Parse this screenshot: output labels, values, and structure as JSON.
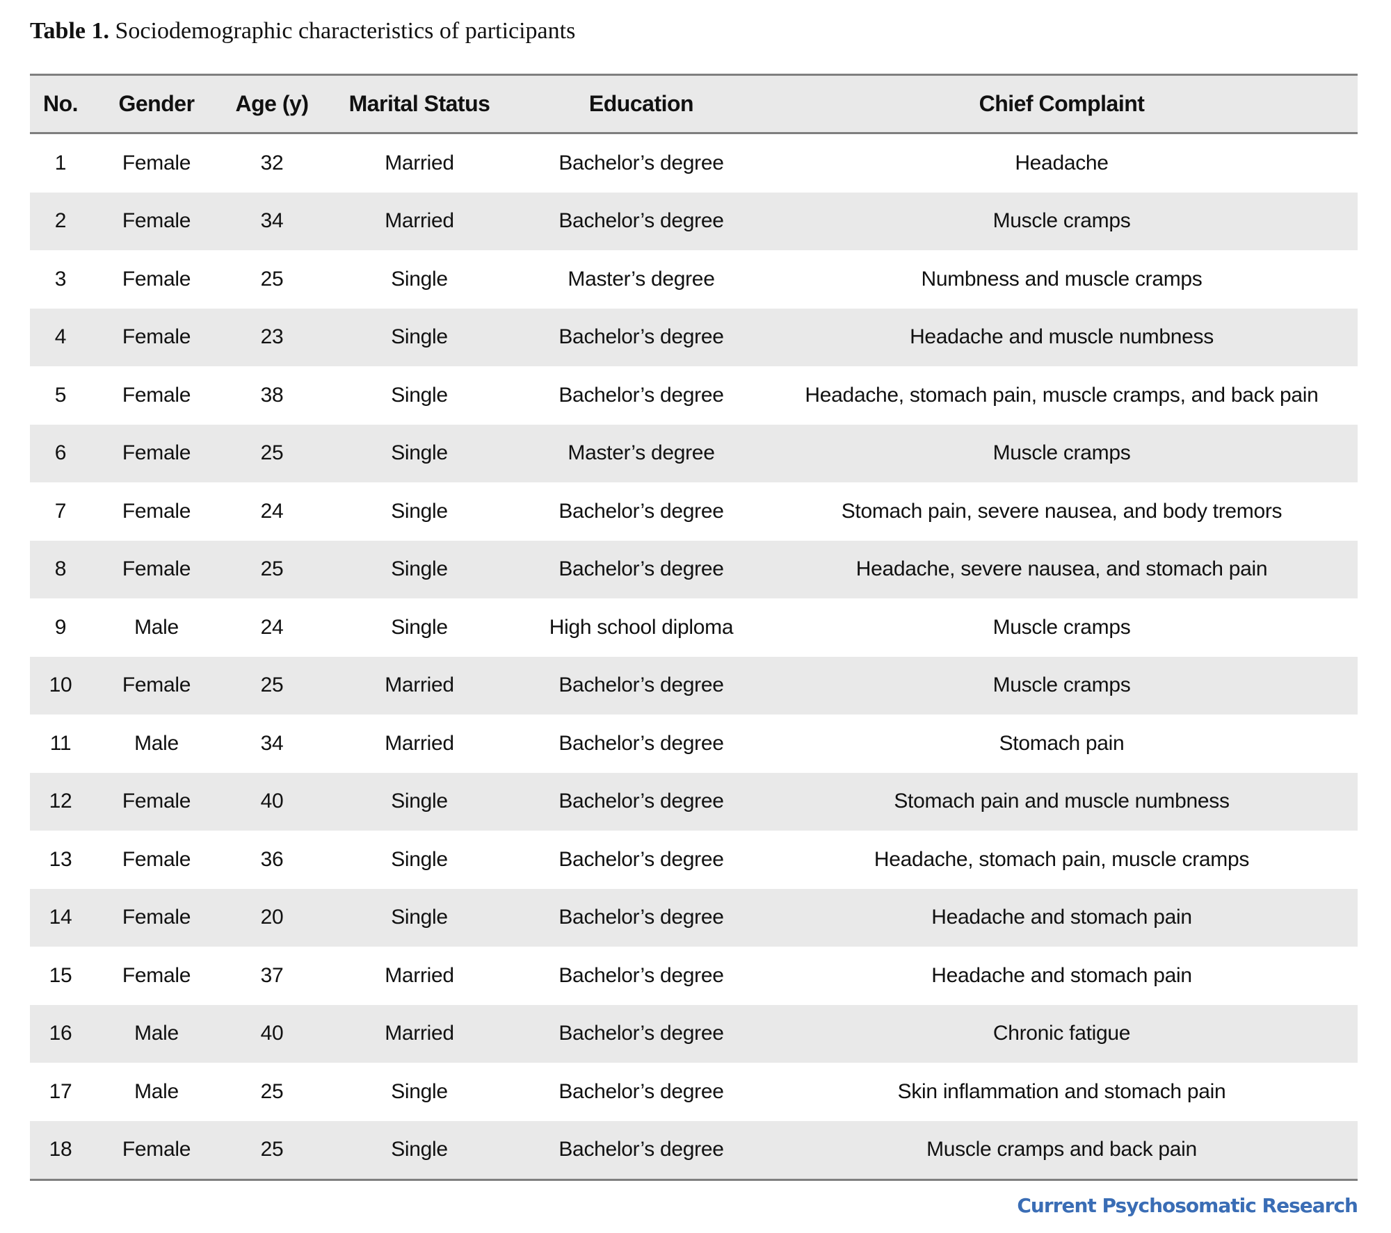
{
  "caption": {
    "label": "Table 1.",
    "text": "Sociodemographic characteristics of participants"
  },
  "columns": [
    "No.",
    "Gender",
    "Age (y)",
    "Marital Status",
    "Education",
    "Chief Complaint"
  ],
  "rows": [
    [
      "1",
      "Female",
      "32",
      "Married",
      "Bachelor’s degree",
      "Headache"
    ],
    [
      "2",
      "Female",
      "34",
      "Married",
      "Bachelor’s degree",
      "Muscle cramps"
    ],
    [
      "3",
      "Female",
      "25",
      "Single",
      "Master’s degree",
      "Numbness and muscle cramps"
    ],
    [
      "4",
      "Female",
      "23",
      "Single",
      "Bachelor’s degree",
      "Headache and muscle numbness"
    ],
    [
      "5",
      "Female",
      "38",
      "Single",
      "Bachelor’s degree",
      "Headache, stomach pain, muscle cramps, and back pain"
    ],
    [
      "6",
      "Female",
      "25",
      "Single",
      "Master’s degree",
      "Muscle cramps"
    ],
    [
      "7",
      "Female",
      "24",
      "Single",
      "Bachelor’s degree",
      "Stomach pain, severe nausea, and body tremors"
    ],
    [
      "8",
      "Female",
      "25",
      "Single",
      "Bachelor’s degree",
      "Headache, severe nausea, and stomach pain"
    ],
    [
      "9",
      "Male",
      "24",
      "Single",
      "High school diploma",
      "Muscle cramps"
    ],
    [
      "10",
      "Female",
      "25",
      "Married",
      "Bachelor’s degree",
      "Muscle cramps"
    ],
    [
      "11",
      "Male",
      "34",
      "Married",
      "Bachelor’s degree",
      "Stomach pain"
    ],
    [
      "12",
      "Female",
      "40",
      "Single",
      "Bachelor’s degree",
      "Stomach pain and muscle numbness"
    ],
    [
      "13",
      "Female",
      "36",
      "Single",
      "Bachelor’s degree",
      "Headache, stomach pain, muscle cramps"
    ],
    [
      "14",
      "Female",
      "20",
      "Single",
      "Bachelor’s degree",
      "Headache and stomach pain"
    ],
    [
      "15",
      "Female",
      "37",
      "Married",
      "Bachelor’s degree",
      "Headache and stomach pain"
    ],
    [
      "16",
      "Male",
      "40",
      "Married",
      "Bachelor’s degree",
      "Chronic fatigue"
    ],
    [
      "17",
      "Male",
      "25",
      "Single",
      "Bachelor’s degree",
      "Skin inflammation and stomach pain"
    ],
    [
      "18",
      "Female",
      "25",
      "Single",
      "Bachelor’s degree",
      "Muscle cramps and back pain"
    ]
  ],
  "footer": {
    "journal": "Current Psychosomatic Research"
  },
  "colors": {
    "stripe": "#e9e9e9",
    "rule": "#7f7f7f",
    "journal": "#3a6db5"
  }
}
